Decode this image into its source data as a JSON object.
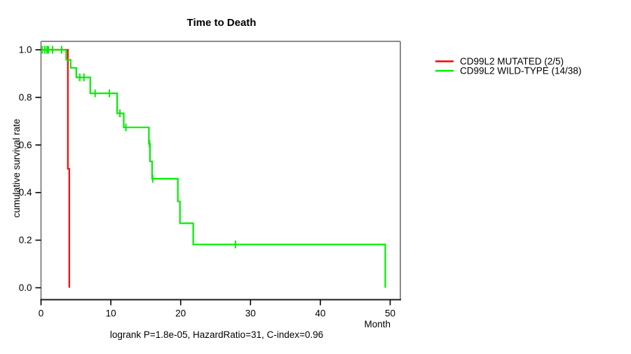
{
  "chart_data": {
    "type": "line",
    "subtype": "kaplan-meier-step",
    "title": "Time to Death",
    "xlabel": "Month",
    "ylabel": "cumulative survival rate",
    "footer": "logrank P=1.8e-05, HazardRatio=31, C-index=0.96",
    "xlim": [
      0,
      50
    ],
    "ylim": [
      0,
      1
    ],
    "xticks": [
      0,
      10,
      20,
      30,
      40,
      50
    ],
    "yticks": [
      "0.0",
      "0.2",
      "0.4",
      "0.6",
      "0.8",
      "1.0"
    ],
    "grid": "off",
    "legend_position": "outside-right",
    "box_color": "#8a8a8a",
    "axis_bottom_color": "#1c1c1c",
    "tick_color": "#000000",
    "series": [
      {
        "name": "CD99L2 MUTATED (2/5)",
        "color": "#ff0000",
        "steps": [
          [
            0,
            1
          ],
          [
            3.85,
            1
          ],
          [
            3.85,
            0.5
          ],
          [
            4.05,
            0.5
          ],
          [
            4.05,
            0
          ]
        ],
        "censors": []
      },
      {
        "name": "CD99L2 WILD-TYPE (14/38)",
        "color": "#00ee00",
        "steps": [
          [
            0,
            1
          ],
          [
            3.6,
            1
          ],
          [
            3.6,
            0.958
          ],
          [
            4.25,
            0.958
          ],
          [
            4.25,
            0.924
          ],
          [
            5.05,
            0.924
          ],
          [
            5.05,
            0.884
          ],
          [
            7.05,
            0.884
          ],
          [
            7.05,
            0.817
          ],
          [
            10.9,
            0.817
          ],
          [
            10.9,
            0.733
          ],
          [
            11.85,
            0.733
          ],
          [
            11.85,
            0.674
          ],
          [
            15.45,
            0.674
          ],
          [
            15.45,
            0.605
          ],
          [
            15.6,
            0.605
          ],
          [
            15.6,
            0.531
          ],
          [
            15.9,
            0.531
          ],
          [
            15.9,
            0.458
          ],
          [
            19.6,
            0.458
          ],
          [
            19.6,
            0.363
          ],
          [
            19.9,
            0.363
          ],
          [
            19.9,
            0.271
          ],
          [
            21.8,
            0.271
          ],
          [
            21.8,
            0.182
          ],
          [
            49.3,
            0.182
          ],
          [
            49.3,
            0
          ]
        ],
        "censors": [
          [
            0.15,
            1
          ],
          [
            0.55,
            1
          ],
          [
            0.85,
            1
          ],
          [
            1.05,
            1
          ],
          [
            1.65,
            1
          ],
          [
            2.95,
            1
          ],
          [
            5.55,
            0.884
          ],
          [
            6.15,
            0.884
          ],
          [
            7.75,
            0.817
          ],
          [
            9.8,
            0.817
          ],
          [
            11.3,
            0.733
          ],
          [
            12.15,
            0.674
          ],
          [
            15.55,
            0.605
          ],
          [
            16.0,
            0.458
          ],
          [
            27.85,
            0.182
          ]
        ]
      }
    ]
  }
}
